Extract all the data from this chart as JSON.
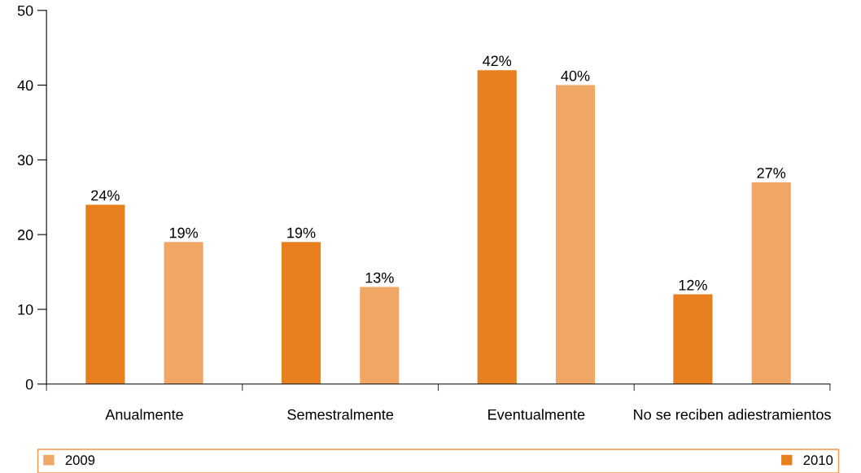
{
  "chart_data": {
    "type": "bar",
    "categories": [
      "Anualmente",
      "Semestralmente",
      "Eventualmente",
      "No se reciben adiestramientos"
    ],
    "series": [
      {
        "name": "2010",
        "color": "#e8801f",
        "values": [
          24,
          19,
          42,
          12
        ],
        "value_labels": [
          "24%",
          "19%",
          "42%",
          "12%"
        ]
      },
      {
        "name": "2009",
        "color": "#f0a765",
        "values": [
          19,
          13,
          40,
          27
        ],
        "value_labels": [
          "19%",
          "13%",
          "40%",
          "27%"
        ]
      }
    ],
    "ylim": [
      0,
      50
    ],
    "yticks": [
      0,
      10,
      20,
      30,
      40,
      50
    ],
    "grid": false,
    "legend": "bottom"
  }
}
